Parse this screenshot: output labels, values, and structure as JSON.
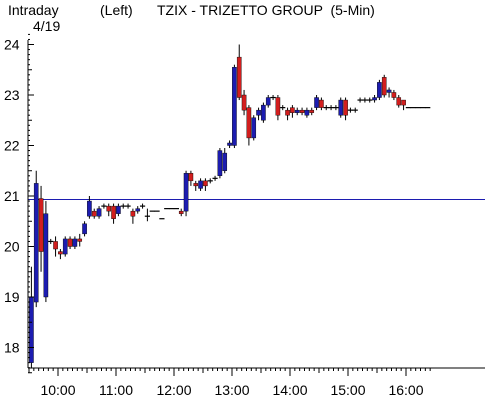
{
  "header": {
    "mode": "Intraday",
    "date": "4/19",
    "axis_side": "(Left)",
    "title": "TZIX - TRIZETTO GROUP  (5-Min)"
  },
  "colors": {
    "up": "#1c1cb0",
    "down": "#d21e1e",
    "flat": "#000000",
    "reference_line": "#1c1cb0",
    "axis": "#000000"
  },
  "chart_data": {
    "type": "candlestick",
    "title": "TZIX - TRIZETTO GROUP  (5-Min)",
    "date": "4/19",
    "interval": "5-Min",
    "xlabel": "",
    "ylabel": "",
    "ylim": [
      17.5,
      24.2
    ],
    "y_ticks": [
      18,
      19,
      20,
      21,
      22,
      23,
      24
    ],
    "x_ticks": [
      "10:00",
      "11:00",
      "12:00",
      "13:00",
      "14:00",
      "15:00",
      "16:00"
    ],
    "x_range": [
      "09:30",
      "16:25"
    ],
    "reference_line": 20.93,
    "grid": false,
    "bars": [
      {
        "t": "09:30",
        "o": 17.7,
        "h": 19.6,
        "l": 17.6,
        "c": 19.0
      },
      {
        "t": "09:35",
        "o": 18.9,
        "h": 21.5,
        "l": 18.8,
        "c": 21.25
      },
      {
        "t": "09:40",
        "o": 20.95,
        "h": 21.2,
        "l": 19.5,
        "c": 19.9
      },
      {
        "t": "09:45",
        "o": 19.0,
        "h": 20.9,
        "l": 18.9,
        "c": 20.65
      },
      {
        "t": "09:50",
        "o": 20.1,
        "h": 20.15,
        "l": 20.05,
        "c": 20.1
      },
      {
        "t": "09:55",
        "o": 20.1,
        "h": 20.2,
        "l": 19.8,
        "c": 19.95
      },
      {
        "t": "10:00",
        "o": 19.9,
        "h": 19.95,
        "l": 19.75,
        "c": 19.85
      },
      {
        "t": "10:05",
        "o": 19.85,
        "h": 20.2,
        "l": 19.8,
        "c": 20.15
      },
      {
        "t": "10:10",
        "o": 20.15,
        "h": 20.2,
        "l": 19.95,
        "c": 20.0
      },
      {
        "t": "10:15",
        "o": 20.0,
        "h": 20.2,
        "l": 19.95,
        "c": 20.15
      },
      {
        "t": "10:20",
        "o": 20.15,
        "h": 20.25,
        "l": 20.0,
        "c": 20.1
      },
      {
        "t": "10:25",
        "o": 20.25,
        "h": 20.5,
        "l": 20.2,
        "c": 20.45
      },
      {
        "t": "10:30",
        "o": 20.6,
        "h": 21.0,
        "l": 20.55,
        "c": 20.9
      },
      {
        "t": "10:35",
        "o": 20.7,
        "h": 20.75,
        "l": 20.55,
        "c": 20.6
      },
      {
        "t": "10:40",
        "o": 20.6,
        "h": 20.8,
        "l": 20.55,
        "c": 20.75
      },
      {
        "t": "10:45",
        "o": 20.8,
        "h": 20.85,
        "l": 20.75,
        "c": 20.8
      },
      {
        "t": "10:50",
        "o": 20.8,
        "h": 20.85,
        "l": 20.6,
        "c": 20.7
      },
      {
        "t": "10:55",
        "o": 20.8,
        "h": 20.85,
        "l": 20.45,
        "c": 20.55
      },
      {
        "t": "11:00",
        "o": 20.65,
        "h": 20.85,
        "l": 20.6,
        "c": 20.8
      },
      {
        "t": "11:05",
        "o": 20.8,
        "h": 20.85,
        "l": 20.75,
        "c": 20.8
      },
      {
        "t": "11:10",
        "o": 20.8,
        "h": 20.85,
        "l": 20.75,
        "c": 20.8
      },
      {
        "t": "11:15",
        "o": 20.7,
        "h": 20.75,
        "l": 20.45,
        "c": 20.6
      },
      {
        "t": "11:20",
        "o": 20.7,
        "h": 20.8,
        "l": 20.65,
        "c": 20.75
      },
      {
        "t": "11:25",
        "o": 20.8,
        "h": 20.85,
        "l": 20.75,
        "c": 20.8
      },
      {
        "t": "11:30",
        "o": 20.6,
        "h": 20.75,
        "l": 20.5,
        "c": 20.6
      },
      {
        "t": "11:35",
        "o": 20.7,
        "h": 20.7,
        "l": 20.7,
        "c": 20.7
      },
      {
        "t": "11:40",
        "o": 20.7,
        "h": 20.7,
        "l": 20.7,
        "c": 20.7
      },
      {
        "t": "11:45",
        "o": 20.55,
        "h": 20.55,
        "l": 20.55,
        "c": 20.55
      },
      {
        "t": "11:50",
        "o": 20.75,
        "h": 20.75,
        "l": 20.75,
        "c": 20.75
      },
      {
        "t": "11:55",
        "o": 20.75,
        "h": 20.75,
        "l": 20.75,
        "c": 20.75
      },
      {
        "t": "12:00",
        "o": 20.75,
        "h": 20.75,
        "l": 20.75,
        "c": 20.75
      },
      {
        "t": "12:05",
        "o": 20.7,
        "h": 20.75,
        "l": 20.6,
        "c": 20.65
      },
      {
        "t": "12:10",
        "o": 20.7,
        "h": 21.5,
        "l": 20.6,
        "c": 21.45
      },
      {
        "t": "12:15",
        "o": 21.45,
        "h": 21.5,
        "l": 21.2,
        "c": 21.3
      },
      {
        "t": "12:20",
        "o": 21.25,
        "h": 21.3,
        "l": 21.1,
        "c": 21.2
      },
      {
        "t": "12:25",
        "o": 21.15,
        "h": 21.35,
        "l": 21.1,
        "c": 21.3
      },
      {
        "t": "12:30",
        "o": 21.3,
        "h": 21.35,
        "l": 21.1,
        "c": 21.2
      },
      {
        "t": "12:35",
        "o": 21.3,
        "h": 21.35,
        "l": 21.25,
        "c": 21.3
      },
      {
        "t": "12:40",
        "o": 21.35,
        "h": 21.4,
        "l": 21.3,
        "c": 21.35
      },
      {
        "t": "12:45",
        "o": 21.4,
        "h": 21.95,
        "l": 21.35,
        "c": 21.9
      },
      {
        "t": "12:50",
        "o": 21.5,
        "h": 21.95,
        "l": 21.45,
        "c": 21.85
      },
      {
        "t": "12:55",
        "o": 22.0,
        "h": 22.1,
        "l": 21.95,
        "c": 22.05
      },
      {
        "t": "13:00",
        "o": 22.0,
        "h": 23.6,
        "l": 21.95,
        "c": 23.55
      },
      {
        "t": "13:05",
        "o": 23.75,
        "h": 24.0,
        "l": 22.9,
        "c": 22.95
      },
      {
        "t": "13:10",
        "o": 23.0,
        "h": 23.1,
        "l": 22.6,
        "c": 22.7
      },
      {
        "t": "13:15",
        "o": 22.75,
        "h": 22.8,
        "l": 22.0,
        "c": 22.15
      },
      {
        "t": "13:20",
        "o": 22.15,
        "h": 22.6,
        "l": 22.1,
        "c": 22.55
      },
      {
        "t": "13:25",
        "o": 22.6,
        "h": 22.75,
        "l": 22.5,
        "c": 22.7
      },
      {
        "t": "13:30",
        "o": 22.5,
        "h": 22.85,
        "l": 22.45,
        "c": 22.8
      },
      {
        "t": "13:35",
        "o": 22.8,
        "h": 23.0,
        "l": 22.75,
        "c": 22.95
      },
      {
        "t": "13:40",
        "o": 22.95,
        "h": 23.0,
        "l": 22.9,
        "c": 22.95
      },
      {
        "t": "13:45",
        "o": 22.95,
        "h": 23.0,
        "l": 22.5,
        "c": 22.6
      },
      {
        "t": "13:50",
        "o": 22.75,
        "h": 22.8,
        "l": 22.7,
        "c": 22.75
      },
      {
        "t": "13:55",
        "o": 22.7,
        "h": 22.75,
        "l": 22.5,
        "c": 22.6
      },
      {
        "t": "14:00",
        "o": 22.75,
        "h": 22.8,
        "l": 22.55,
        "c": 22.65
      },
      {
        "t": "14:05",
        "o": 22.65,
        "h": 22.75,
        "l": 22.6,
        "c": 22.7
      },
      {
        "t": "14:10",
        "o": 22.7,
        "h": 22.75,
        "l": 22.6,
        "c": 22.65
      },
      {
        "t": "14:15",
        "o": 22.6,
        "h": 22.75,
        "l": 22.55,
        "c": 22.7
      },
      {
        "t": "14:20",
        "o": 22.7,
        "h": 22.75,
        "l": 22.6,
        "c": 22.65
      },
      {
        "t": "14:25",
        "o": 22.75,
        "h": 23.0,
        "l": 22.7,
        "c": 22.95
      },
      {
        "t": "14:30",
        "o": 22.9,
        "h": 22.95,
        "l": 22.7,
        "c": 22.75
      },
      {
        "t": "14:35",
        "o": 22.75,
        "h": 22.8,
        "l": 22.7,
        "c": 22.75
      },
      {
        "t": "14:40",
        "o": 22.75,
        "h": 22.8,
        "l": 22.7,
        "c": 22.75
      },
      {
        "t": "14:45",
        "o": 22.75,
        "h": 22.8,
        "l": 22.7,
        "c": 22.75
      },
      {
        "t": "14:50",
        "o": 22.6,
        "h": 22.95,
        "l": 22.55,
        "c": 22.9
      },
      {
        "t": "14:55",
        "o": 22.9,
        "h": 22.95,
        "l": 22.5,
        "c": 22.6
      },
      {
        "t": "15:00",
        "o": 22.7,
        "h": 22.75,
        "l": 22.65,
        "c": 22.7
      },
      {
        "t": "15:05",
        "o": 22.7,
        "h": 22.75,
        "l": 22.65,
        "c": 22.7
      },
      {
        "t": "15:10",
        "o": 22.9,
        "h": 22.95,
        "l": 22.85,
        "c": 22.9
      },
      {
        "t": "15:15",
        "o": 22.9,
        "h": 22.95,
        "l": 22.85,
        "c": 22.9
      },
      {
        "t": "15:20",
        "o": 22.9,
        "h": 22.95,
        "l": 22.85,
        "c": 22.9
      },
      {
        "t": "15:25",
        "o": 22.9,
        "h": 23.0,
        "l": 22.85,
        "c": 22.95
      },
      {
        "t": "15:30",
        "o": 22.95,
        "h": 23.3,
        "l": 22.9,
        "c": 23.25
      },
      {
        "t": "15:35",
        "o": 23.35,
        "h": 23.4,
        "l": 22.95,
        "c": 23.0
      },
      {
        "t": "15:40",
        "o": 23.05,
        "h": 23.15,
        "l": 22.95,
        "c": 23.1
      },
      {
        "t": "15:45",
        "o": 23.05,
        "h": 23.1,
        "l": 22.9,
        "c": 22.95
      },
      {
        "t": "15:50",
        "o": 22.95,
        "h": 23.0,
        "l": 22.75,
        "c": 22.8
      },
      {
        "t": "15:55",
        "o": 22.9,
        "h": 22.9,
        "l": 22.7,
        "c": 22.8
      },
      {
        "t": "16:00",
        "o": 22.75,
        "h": 22.75,
        "l": 22.75,
        "c": 22.75
      },
      {
        "t": "16:05",
        "o": 22.75,
        "h": 22.75,
        "l": 22.75,
        "c": 22.75
      },
      {
        "t": "16:10",
        "o": 22.75,
        "h": 22.75,
        "l": 22.75,
        "c": 22.75
      },
      {
        "t": "16:15",
        "o": 22.75,
        "h": 22.75,
        "l": 22.75,
        "c": 22.75
      },
      {
        "t": "16:20",
        "o": 22.75,
        "h": 22.75,
        "l": 22.75,
        "c": 22.75
      }
    ]
  }
}
